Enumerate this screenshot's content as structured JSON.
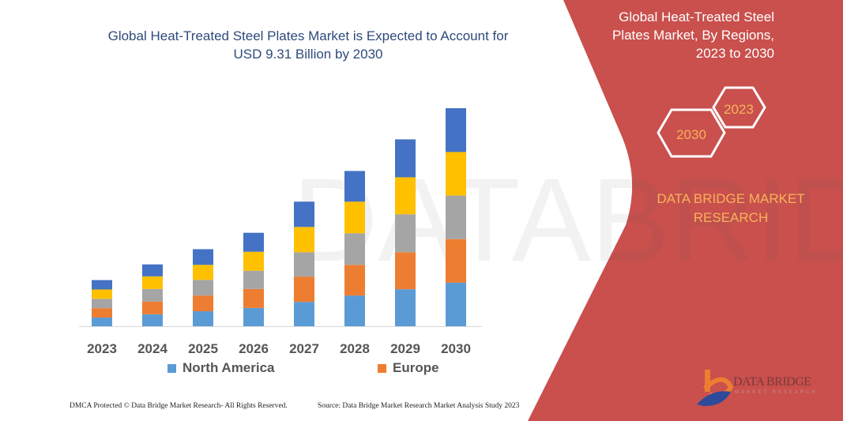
{
  "header": {
    "title": "Global Heat-Treated Steel Plates Market is Expected to Account for USD 9.31 Billion by 2030"
  },
  "side_panel": {
    "title": "Global Heat-Treated Steel Plates Market, By Regions, 2023 to 2030",
    "hex_a": "2023",
    "hex_b": "2030",
    "brand": "DATA BRIDGE MARKET RESEARCH",
    "logo_text": "DATA BRIDGE",
    "logo_sub": "MARKET RESEARCH",
    "color": "#c9504d",
    "accent": "#f7b35a"
  },
  "footer": {
    "left": "DMCA Protected © Data Bridge Market Research- All Rights Reserved.",
    "right": "Source: Data Bridge Market Research  Market Analysis Study 2023"
  },
  "chart_data": {
    "type": "bar",
    "stacked": true,
    "categories": [
      "2023",
      "2024",
      "2025",
      "2026",
      "2027",
      "2028",
      "2029",
      "2030"
    ],
    "series": [
      {
        "name": "North America",
        "color": "#5b9bd5",
        "values": [
          0.37,
          0.51,
          0.64,
          0.78,
          1.04,
          1.31,
          1.58,
          1.86
        ]
      },
      {
        "name": "Europe",
        "color": "#ed7d31",
        "values": [
          0.4,
          0.54,
          0.67,
          0.81,
          1.08,
          1.31,
          1.58,
          1.86
        ]
      },
      {
        "color": "#a5a5a5",
        "values": [
          0.4,
          0.54,
          0.67,
          0.78,
          1.04,
          1.35,
          1.62,
          1.86
        ]
      },
      {
        "color": "#ffc000",
        "values": [
          0.4,
          0.54,
          0.64,
          0.81,
          1.08,
          1.35,
          1.58,
          1.86
        ]
      },
      {
        "color": "#4472c4",
        "values": [
          0.4,
          0.51,
          0.67,
          0.81,
          1.08,
          1.31,
          1.62,
          1.87
        ]
      }
    ],
    "ylim": [
      0,
      9.31
    ],
    "grid": false,
    "legend": "bottom"
  }
}
